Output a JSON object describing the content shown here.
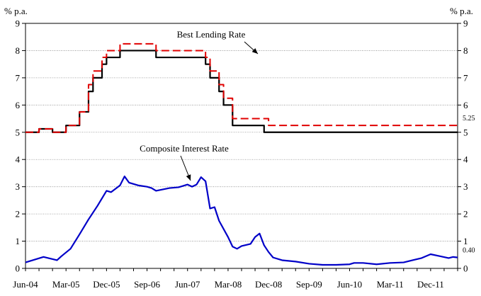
{
  "chart_data": {
    "type": "line",
    "title": "",
    "y_unit_left": "% p.a.",
    "y_unit_right": "% p.a.",
    "ylim": [
      0,
      9
    ],
    "yticks": [
      0,
      1,
      2,
      3,
      4,
      5,
      6,
      7,
      8,
      9
    ],
    "grid": true,
    "x_tick_labels": [
      "Jun-04",
      "Mar-05",
      "Dec-05",
      "Sep-06",
      "Jun-07",
      "Mar-08",
      "Dec-08",
      "Sep-09",
      "Jun-10",
      "Mar-11",
      "Dec-11"
    ],
    "x_tick_dates": [
      "2004-06",
      "2005-03",
      "2005-12",
      "2006-09",
      "2007-06",
      "2008-03",
      "2008-12",
      "2009-09",
      "2010-06",
      "2011-03",
      "2011-12"
    ],
    "x_range": [
      "2004-06",
      "2012-06"
    ],
    "annotations": [
      {
        "text": "Best Lending Rate",
        "points_to": "best-lending-rate",
        "at_date": "2007-10",
        "at_value": 7.75
      },
      {
        "text": "Composite Interest Rate",
        "points_to": "composite-interest-rate",
        "at_date": "2007-06",
        "at_value": 3.2
      }
    ],
    "value_labels": [
      {
        "text": "5.25",
        "series": "dashed-red",
        "date": "2012-06",
        "value": 5.25
      },
      {
        "text": "0.40",
        "series": "composite-interest-rate",
        "date": "2012-06",
        "value": 0.4
      }
    ],
    "series": [
      {
        "id": "best-lending-rate",
        "color": "#000000",
        "style": "solid",
        "step": true,
        "points": [
          [
            "2004-06",
            5.0
          ],
          [
            "2004-09",
            5.125
          ],
          [
            "2004-12",
            5.0
          ],
          [
            "2005-03",
            5.25
          ],
          [
            "2005-06",
            5.75
          ],
          [
            "2005-08",
            6.5
          ],
          [
            "2005-09",
            7.0
          ],
          [
            "2005-11",
            7.5
          ],
          [
            "2005-12",
            7.75
          ],
          [
            "2006-03",
            8.0
          ],
          [
            "2006-11",
            7.75
          ],
          [
            "2007-09",
            7.75
          ],
          [
            "2007-10",
            7.5
          ],
          [
            "2007-11",
            7.0
          ],
          [
            "2008-01",
            6.5
          ],
          [
            "2008-02",
            6.0
          ],
          [
            "2008-04",
            5.25
          ],
          [
            "2008-11",
            5.0
          ],
          [
            "2012-06",
            5.0
          ]
        ]
      },
      {
        "id": "dashed-red",
        "color": "#e00000",
        "style": "dashed",
        "step": true,
        "points": [
          [
            "2004-06",
            5.0
          ],
          [
            "2004-09",
            5.125
          ],
          [
            "2004-12",
            5.0
          ],
          [
            "2005-03",
            5.25
          ],
          [
            "2005-06",
            5.75
          ],
          [
            "2005-08",
            6.75
          ],
          [
            "2005-09",
            7.25
          ],
          [
            "2005-11",
            7.75
          ],
          [
            "2005-12",
            8.0
          ],
          [
            "2006-03",
            8.25
          ],
          [
            "2006-11",
            8.0
          ],
          [
            "2007-09",
            8.0
          ],
          [
            "2007-10",
            7.75
          ],
          [
            "2007-11",
            7.25
          ],
          [
            "2008-01",
            6.75
          ],
          [
            "2008-02",
            6.25
          ],
          [
            "2008-04",
            5.5
          ],
          [
            "2008-12",
            5.25
          ],
          [
            "2012-06",
            5.25
          ]
        ]
      },
      {
        "id": "composite-interest-rate",
        "color": "#0000c8",
        "style": "solid",
        "step": false,
        "points": [
          [
            "2004-06",
            0.22
          ],
          [
            "2004-08",
            0.32
          ],
          [
            "2004-10",
            0.42
          ],
          [
            "2005-01",
            0.3
          ],
          [
            "2005-02",
            0.45
          ],
          [
            "2005-04",
            0.72
          ],
          [
            "2005-06",
            1.25
          ],
          [
            "2005-08",
            1.8
          ],
          [
            "2005-10",
            2.3
          ],
          [
            "2005-12",
            2.85
          ],
          [
            "2006-01",
            2.8
          ],
          [
            "2006-03",
            3.05
          ],
          [
            "2006-04",
            3.38
          ],
          [
            "2006-05",
            3.15
          ],
          [
            "2006-07",
            3.05
          ],
          [
            "2006-09",
            3.0
          ],
          [
            "2006-10",
            2.95
          ],
          [
            "2006-11",
            2.85
          ],
          [
            "2007-02",
            2.95
          ],
          [
            "2007-04",
            2.98
          ],
          [
            "2007-06",
            3.08
          ],
          [
            "2007-07",
            3.0
          ],
          [
            "2007-08",
            3.08
          ],
          [
            "2007-09",
            3.35
          ],
          [
            "2007-10",
            3.2
          ],
          [
            "2007-11",
            2.2
          ],
          [
            "2007-12",
            2.25
          ],
          [
            "2008-01",
            1.75
          ],
          [
            "2008-03",
            1.15
          ],
          [
            "2008-04",
            0.8
          ],
          [
            "2008-05",
            0.72
          ],
          [
            "2008-06",
            0.82
          ],
          [
            "2008-08",
            0.9
          ],
          [
            "2008-09",
            1.15
          ],
          [
            "2008-10",
            1.28
          ],
          [
            "2008-11",
            0.85
          ],
          [
            "2008-12",
            0.6
          ],
          [
            "2009-01",
            0.4
          ],
          [
            "2009-03",
            0.3
          ],
          [
            "2009-06",
            0.25
          ],
          [
            "2009-09",
            0.17
          ],
          [
            "2009-12",
            0.13
          ],
          [
            "2010-03",
            0.13
          ],
          [
            "2010-06",
            0.15
          ],
          [
            "2010-07",
            0.2
          ],
          [
            "2010-09",
            0.2
          ],
          [
            "2010-12",
            0.15
          ],
          [
            "2011-03",
            0.2
          ],
          [
            "2011-06",
            0.22
          ],
          [
            "2011-08",
            0.3
          ],
          [
            "2011-10",
            0.38
          ],
          [
            "2011-12",
            0.52
          ],
          [
            "2012-02",
            0.45
          ],
          [
            "2012-04",
            0.38
          ],
          [
            "2012-05",
            0.42
          ],
          [
            "2012-06",
            0.4
          ]
        ]
      }
    ]
  }
}
